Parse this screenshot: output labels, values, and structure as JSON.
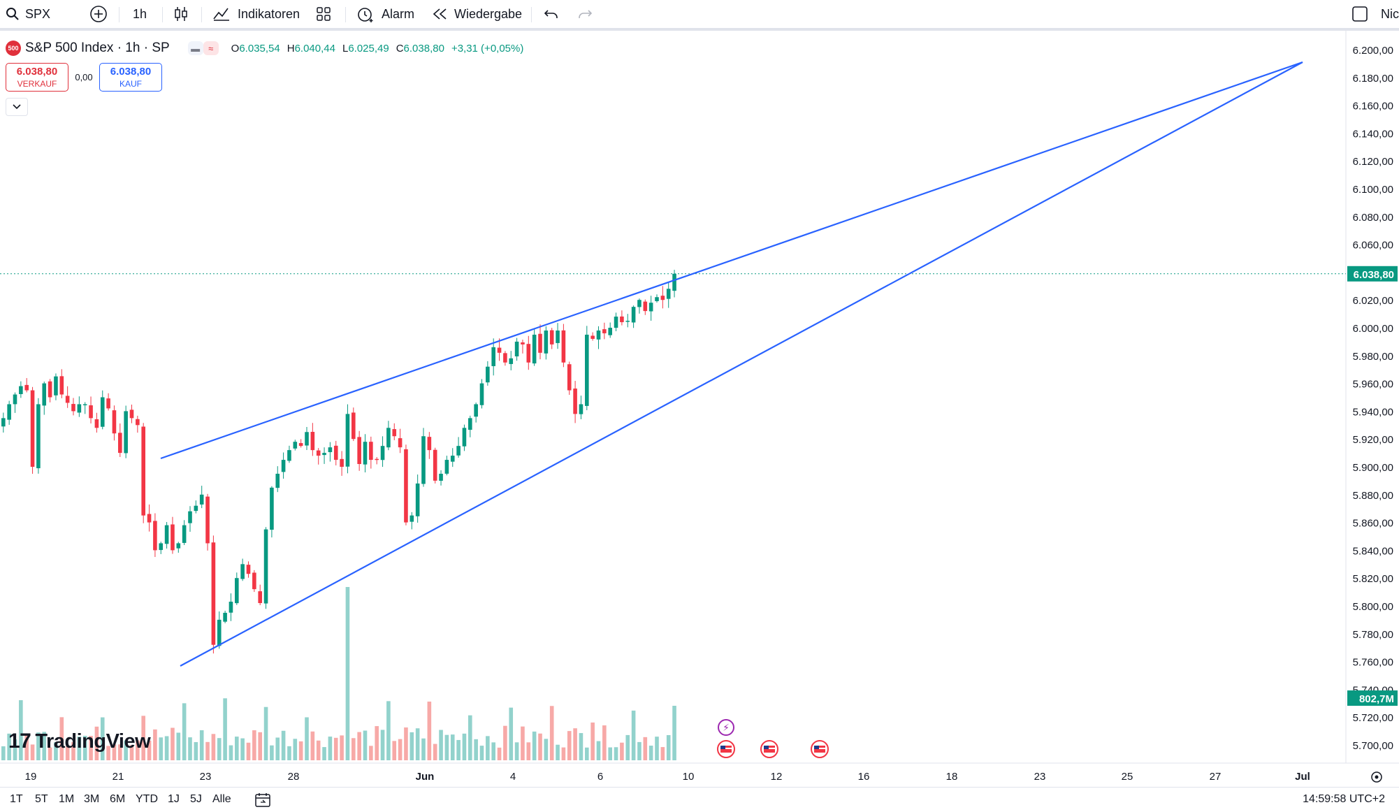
{
  "toolbar": {
    "symbol": "SPX",
    "interval": "1h",
    "indicators": "Indikatoren",
    "alert": "Alarm",
    "replay": "Wiedergabe",
    "right_label": "Nic"
  },
  "legend": {
    "badge": "500",
    "title": "S&P 500 Index · 1h · SP",
    "o_key": "O",
    "o_val": "6.035,54",
    "h_key": "H",
    "h_val": "6.040,44",
    "l_key": "L",
    "l_val": "6.025,49",
    "c_key": "C",
    "c_val": "6.038,80",
    "change": "+3,31 (+0,05%)"
  },
  "trade": {
    "sell_price": "6.038,80",
    "sell_label": "VERKAUF",
    "spread": "0,00",
    "buy_price": "6.038,80",
    "buy_label": "KAUF"
  },
  "logo": "TradingView",
  "bottom": {
    "ranges": [
      "1T",
      "5T",
      "1M",
      "3M",
      "6M",
      "YTD",
      "1J",
      "5J",
      "Alle"
    ],
    "clock": "14:59:58 UTC+2"
  },
  "colors": {
    "up": "#089981",
    "down": "#f23645",
    "trend": "#2962ff",
    "vol_up": "#92d2cc",
    "vol_down": "#f7a9a7"
  },
  "chart_data": {
    "type": "candlestick",
    "y_ticks": [
      5700,
      5720,
      5740,
      5760,
      5780,
      5800,
      5820,
      5840,
      5860,
      5880,
      5900,
      5920,
      5940,
      5960,
      5980,
      6000,
      6020,
      6040,
      6060,
      6080,
      6100,
      6120,
      6140,
      6160,
      6180,
      6200
    ],
    "y_tick_labels": [
      "5.700,00",
      "5.720,00",
      "5.740,00",
      "5.760,00",
      "5.780,00",
      "5.800,00",
      "5.820,00",
      "5.840,00",
      "5.860,00",
      "5.880,00",
      "5.900,00",
      "5.920,00",
      "5.940,00",
      "5.960,00",
      "5.980,00",
      "6.000,00",
      "6.020,00",
      "6.040,00",
      "6.060,00",
      "6.080,00",
      "6.100,00",
      "6.120,00",
      "6.140,00",
      "6.160,00",
      "6.180,00",
      "6.200,00"
    ],
    "ylim": [
      5686,
      6210
    ],
    "x_labels": [
      "19",
      "21",
      "23",
      "28",
      "Jun",
      "4",
      "6",
      "10",
      "12",
      "16",
      "18",
      "23",
      "25",
      "27",
      "Jul"
    ],
    "last_price": 6038.8,
    "last_price_label": "6.038,80",
    "last_volume_label": "802,7M",
    "closes": [
      5935,
      5945,
      5952,
      5958,
      5955,
      5900,
      5945,
      5960,
      5950,
      5965,
      5952,
      5946,
      5940,
      5945,
      5945,
      5935,
      5928,
      5950,
      5942,
      5924,
      5910,
      5940,
      5935,
      5930,
      5865,
      5860,
      5840,
      5845,
      5858,
      5840,
      5845,
      5858,
      5868,
      5872,
      5880,
      5845,
      5772,
      5790,
      5795,
      5803,
      5820,
      5830,
      5823,
      5812,
      5802,
      5855,
      5885,
      5895,
      5905,
      5912,
      5918,
      5915,
      5925,
      5912,
      5908,
      5910,
      5914,
      5905,
      5900,
      5938,
      5920,
      5902,
      5918,
      5905,
      5905,
      5915,
      5928,
      5922,
      5914,
      5860,
      5865,
      5888,
      5922,
      5912,
      5890,
      5895,
      5905,
      5908,
      5915,
      5928,
      5935,
      5945,
      5960,
      5972,
      5986,
      5982,
      5975,
      5978,
      5990,
      5988,
      5975,
      5995,
      5982,
      5998,
      5988,
      5998,
      5975,
      5955,
      5938,
      5945,
      5995,
      5992,
      5998,
      5996,
      6000,
      6008,
      6004,
      6005,
      6015,
      6020,
      6012,
      6018,
      6022,
      6020,
      6028,
      6038.8
    ],
    "annotations": [
      "trend line upper",
      "trend line lower"
    ]
  }
}
